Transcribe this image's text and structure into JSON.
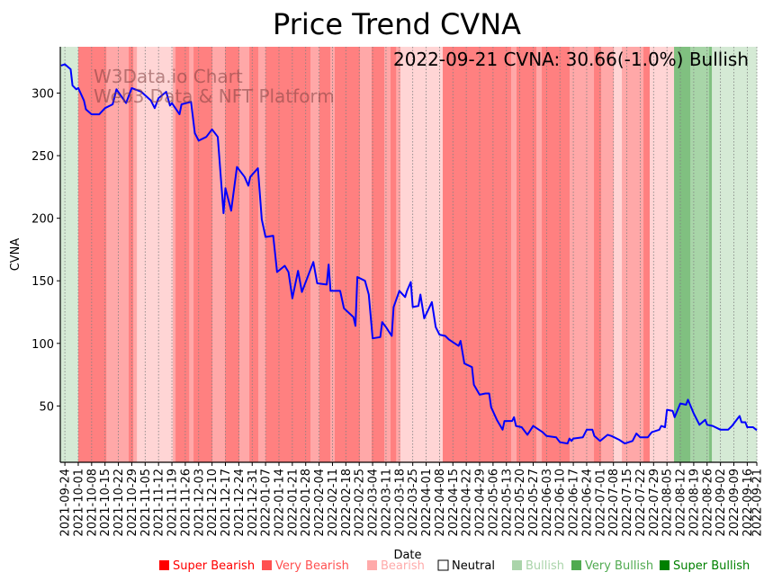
{
  "chart_data": {
    "type": "line",
    "title": "Price Trend CVNA",
    "xlabel": "Date",
    "ylabel": "CVNA",
    "annotation": "2022-09-21 CVNA: 30.66(-1.0%) Bullish",
    "watermark": [
      "W3Data.io Chart",
      "Web3 Data & NFT Platform"
    ],
    "x_unit": "days since 2021-09-24",
    "xlim": [
      -2.4,
      362
    ],
    "ylim": [
      5,
      337
    ],
    "y_ticks": [
      50,
      100,
      150,
      200,
      250,
      300
    ],
    "x_ticks": [
      {
        "day": 0,
        "label": "2021-09-24"
      },
      {
        "day": 7,
        "label": "2021-10-01"
      },
      {
        "day": 14,
        "label": "2021-10-08"
      },
      {
        "day": 21,
        "label": "2021-10-15"
      },
      {
        "day": 28,
        "label": "2021-10-22"
      },
      {
        "day": 35,
        "label": "2021-10-29"
      },
      {
        "day": 42,
        "label": "2021-11-05"
      },
      {
        "day": 49,
        "label": "2021-11-12"
      },
      {
        "day": 56,
        "label": "2021-11-19"
      },
      {
        "day": 63,
        "label": "2021-11-26"
      },
      {
        "day": 70,
        "label": "2021-12-03"
      },
      {
        "day": 77,
        "label": "2021-12-10"
      },
      {
        "day": 84,
        "label": "2021-12-17"
      },
      {
        "day": 91,
        "label": "2021-12-24"
      },
      {
        "day": 98,
        "label": "2021-12-31"
      },
      {
        "day": 105,
        "label": "2022-01-07"
      },
      {
        "day": 112,
        "label": "2022-01-14"
      },
      {
        "day": 119,
        "label": "2022-01-21"
      },
      {
        "day": 126,
        "label": "2022-01-28"
      },
      {
        "day": 133,
        "label": "2022-02-04"
      },
      {
        "day": 140,
        "label": "2022-02-11"
      },
      {
        "day": 147,
        "label": "2022-02-18"
      },
      {
        "day": 154,
        "label": "2022-02-25"
      },
      {
        "day": 161,
        "label": "2022-03-04"
      },
      {
        "day": 168,
        "label": "2022-03-11"
      },
      {
        "day": 175,
        "label": "2022-03-18"
      },
      {
        "day": 182,
        "label": "2022-03-25"
      },
      {
        "day": 189,
        "label": "2022-04-01"
      },
      {
        "day": 196,
        "label": "2022-04-08"
      },
      {
        "day": 203,
        "label": "2022-04-15"
      },
      {
        "day": 210,
        "label": "2022-04-22"
      },
      {
        "day": 217,
        "label": "2022-04-29"
      },
      {
        "day": 224,
        "label": "2022-05-06"
      },
      {
        "day": 231,
        "label": "2022-05-13"
      },
      {
        "day": 238,
        "label": "2022-05-20"
      },
      {
        "day": 245,
        "label": "2022-05-27"
      },
      {
        "day": 252,
        "label": "2022-06-03"
      },
      {
        "day": 259,
        "label": "2022-06-10"
      },
      {
        "day": 266,
        "label": "2022-06-17"
      },
      {
        "day": 273,
        "label": "2022-06-24"
      },
      {
        "day": 280,
        "label": "2022-07-01"
      },
      {
        "day": 287,
        "label": "2022-07-08"
      },
      {
        "day": 294,
        "label": "2022-07-15"
      },
      {
        "day": 301,
        "label": "2022-07-22"
      },
      {
        "day": 308,
        "label": "2022-07-29"
      },
      {
        "day": 315,
        "label": "2022-08-05"
      },
      {
        "day": 322,
        "label": "2022-08-12"
      },
      {
        "day": 329,
        "label": "2022-08-19"
      },
      {
        "day": 336,
        "label": "2022-08-26"
      },
      {
        "day": 343,
        "label": "2022-09-02"
      },
      {
        "day": 350,
        "label": "2022-09-09"
      },
      {
        "day": 357,
        "label": "2022-09-16"
      },
      {
        "day": 362,
        "label": "2022-09-21"
      }
    ],
    "series": [
      {
        "name": "CVNA",
        "color": "#0000ff",
        "x": [
          -2,
          0,
          3,
          4,
          6,
          7,
          10,
          11,
          14,
          18,
          21,
          25,
          27,
          32,
          35,
          40,
          45,
          47,
          49,
          53,
          55,
          56,
          60,
          61,
          66,
          68,
          70,
          74,
          77,
          80,
          83,
          84,
          87,
          90,
          94,
          96,
          97,
          101,
          103,
          105,
          109,
          111,
          115,
          117,
          119,
          122,
          124,
          130,
          132,
          137,
          138,
          139,
          144,
          146,
          151,
          152,
          153,
          157,
          159,
          161,
          165,
          166,
          168,
          171,
          172,
          175,
          178,
          179,
          181,
          182,
          185,
          186,
          188,
          192,
          194,
          196,
          199,
          201,
          204,
          206,
          207,
          209,
          213,
          214,
          217,
          220,
          222,
          223,
          226,
          229,
          230,
          234,
          235,
          236,
          239,
          242,
          245,
          250,
          252,
          257,
          259,
          263,
          264,
          265,
          266,
          271,
          273,
          276,
          277,
          280,
          284,
          286,
          290,
          293,
          297,
          299,
          301,
          305,
          307,
          311,
          312,
          314,
          315,
          318,
          319,
          322,
          325,
          326,
          329,
          332,
          335,
          336,
          339,
          343,
          347,
          349,
          353,
          354,
          356,
          357,
          360,
          362
        ],
        "y": [
          322,
          323,
          319,
          306,
          303,
          304,
          294,
          287,
          283,
          283,
          288,
          291,
          303,
          292,
          304,
          301,
          294,
          288,
          296,
          301,
          290,
          292,
          283,
          291,
          293,
          268,
          262,
          265,
          271,
          265,
          204,
          224,
          206,
          241,
          233,
          226,
          233,
          240,
          199,
          185,
          186,
          157,
          162,
          157,
          136,
          158,
          141,
          165,
          148,
          147,
          163,
          142,
          142,
          128,
          121,
          114,
          153,
          150,
          139,
          104,
          105,
          117,
          113,
          106,
          129,
          142,
          137,
          142,
          149,
          129,
          130,
          139,
          120,
          133,
          113,
          107,
          106,
          103,
          100,
          98,
          102,
          84,
          81,
          67,
          59,
          60,
          60,
          49,
          39,
          31,
          38,
          38,
          41,
          34,
          33,
          27,
          34,
          29,
          26,
          25,
          21,
          20,
          24,
          22,
          24,
          25,
          31,
          31,
          26,
          22,
          27,
          26,
          23,
          20,
          22,
          28,
          25,
          25,
          29,
          31,
          34,
          33,
          47,
          46,
          41,
          52,
          51,
          55,
          44,
          35,
          39,
          35,
          34,
          31,
          31,
          34,
          42,
          37,
          37,
          33,
          33,
          30.66
        ]
      }
    ],
    "bands": [
      [
        -2.4,
        7,
        "Bullish"
      ],
      [
        7,
        21.7,
        "Super Bearish"
      ],
      [
        21.7,
        33.4,
        "Very Bearish"
      ],
      [
        33.4,
        35.8,
        "Super Bearish"
      ],
      [
        35.8,
        37.7,
        "Very Bearish"
      ],
      [
        37.7,
        56.5,
        "Bearish"
      ],
      [
        56.5,
        57.9,
        "Very Bearish"
      ],
      [
        57.9,
        65,
        "Super Bearish"
      ],
      [
        65,
        67.3,
        "Very Bearish"
      ],
      [
        67.3,
        77.2,
        "Super Bearish"
      ],
      [
        77.2,
        83.8,
        "Very Bearish"
      ],
      [
        83.8,
        91.3,
        "Super Bearish"
      ],
      [
        91.3,
        96.5,
        "Very Bearish"
      ],
      [
        96.5,
        101.2,
        "Super Bearish"
      ],
      [
        101.2,
        105,
        "Very Bearish"
      ],
      [
        105,
        128.5,
        "Super Bearish"
      ],
      [
        128.5,
        133.2,
        "Very Bearish"
      ],
      [
        133.2,
        138.9,
        "Super Bearish"
      ],
      [
        138.9,
        141.2,
        "Very Bearish"
      ],
      [
        141.2,
        154.4,
        "Super Bearish"
      ],
      [
        154.4,
        160.5,
        "Very Bearish"
      ],
      [
        160.5,
        167.1,
        "Super Bearish"
      ],
      [
        167.1,
        170.4,
        "Very Bearish"
      ],
      [
        170.4,
        173.3,
        "Super Bearish"
      ],
      [
        173.3,
        175.6,
        "Very Bearish"
      ],
      [
        175.6,
        197.7,
        "Bearish"
      ],
      [
        197.7,
        233.5,
        "Super Bearish"
      ],
      [
        233.5,
        236.3,
        "Very Bearish"
      ],
      [
        236.3,
        246.7,
        "Super Bearish"
      ],
      [
        246.7,
        249.5,
        "Very Bearish"
      ],
      [
        249.5,
        264.1,
        "Super Bearish"
      ],
      [
        264.1,
        276.8,
        "Very Bearish"
      ],
      [
        276.8,
        280.6,
        "Super Bearish"
      ],
      [
        280.6,
        287.2,
        "Very Bearish"
      ],
      [
        287.2,
        291.4,
        "Bearish"
      ],
      [
        291.4,
        302.7,
        "Very Bearish"
      ],
      [
        302.7,
        306,
        "Super Bearish"
      ],
      [
        306,
        318.7,
        "Bearish"
      ],
      [
        318.7,
        327.2,
        "Super Bullish"
      ],
      [
        327.2,
        337.1,
        "Very Bullish"
      ],
      [
        337.1,
        338.5,
        "Super Bullish"
      ],
      [
        338.5,
        362,
        "Bullish"
      ]
    ],
    "legend": {
      "placement": "bottom",
      "entries": [
        {
          "label": "Super Bearish",
          "color": "#ff0000",
          "band": "#ff8080"
        },
        {
          "label": "Very Bearish",
          "color": "#ff5050",
          "band": "#ffa8a8"
        },
        {
          "label": "Bearish",
          "color": "#ffaaaa",
          "band": "#ffd5d5"
        },
        {
          "label": "Neutral",
          "color": "#000000",
          "band": "#ffffff"
        },
        {
          "label": "Bullish",
          "color": "#aad4aa",
          "band": "#d5ead5"
        },
        {
          "label": "Very Bullish",
          "color": "#50aa50",
          "band": "#a8d5a8"
        },
        {
          "label": "Super Bullish",
          "color": "#008000",
          "band": "#80c080"
        }
      ]
    }
  }
}
